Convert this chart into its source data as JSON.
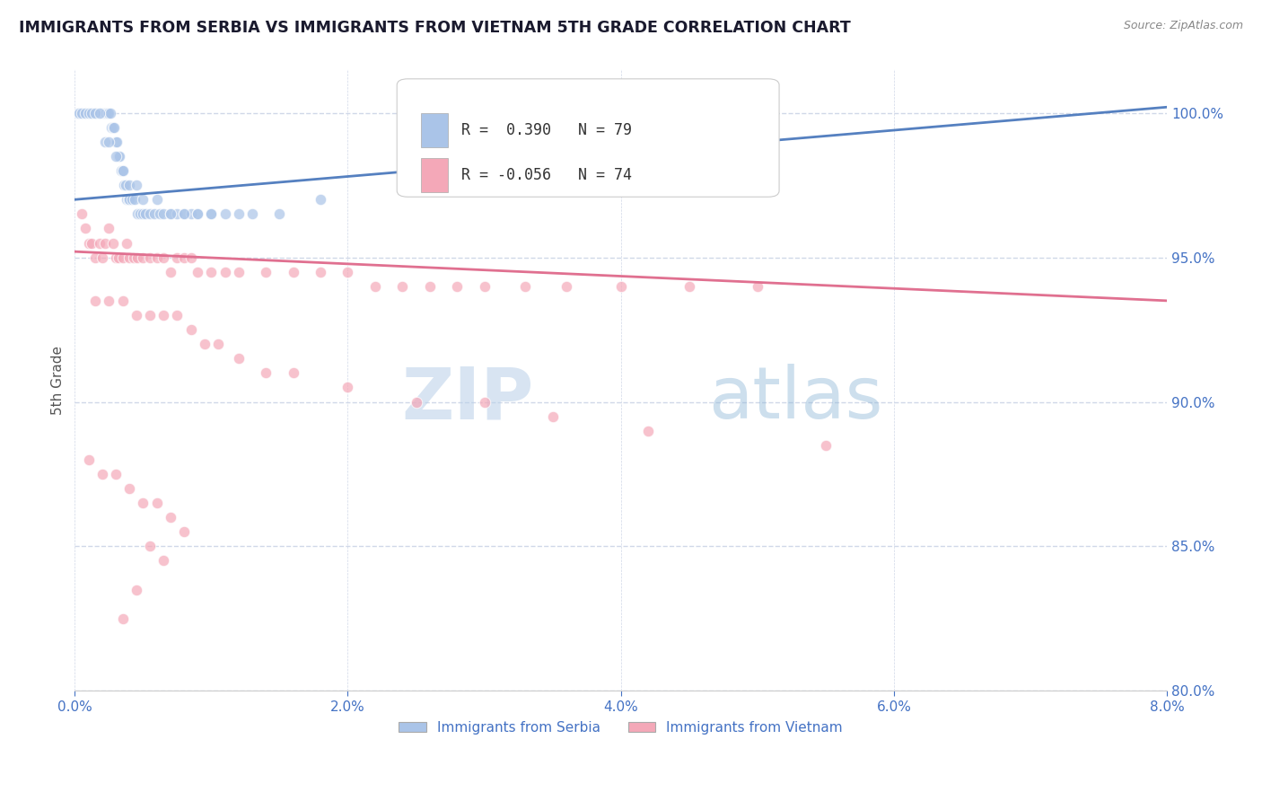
{
  "title": "IMMIGRANTS FROM SERBIA VS IMMIGRANTS FROM VIETNAM 5TH GRADE CORRELATION CHART",
  "source": "Source: ZipAtlas.com",
  "ylabel": "5th Grade",
  "xlim": [
    0.0,
    8.0
  ],
  "ylim": [
    80.0,
    101.5
  ],
  "serbia_R": 0.39,
  "serbia_N": 79,
  "vietnam_R": -0.056,
  "vietnam_N": 74,
  "serbia_color": "#aac4e8",
  "vietnam_color": "#f4a8b8",
  "serbia_line_color": "#5580c0",
  "vietnam_line_color": "#e07090",
  "legend_label_serbia": "Immigrants from Serbia",
  "legend_label_vietnam": "Immigrants from Vietnam",
  "watermark_zip": "ZIP",
  "watermark_atlas": "atlas",
  "watermark_color": "#ccdff0",
  "background_color": "#ffffff",
  "grid_color": "#d0d8e8",
  "title_color": "#1a1a2e",
  "axis_label_color": "#4472c4",
  "serbia_x": [
    0.02,
    0.03,
    0.04,
    0.05,
    0.06,
    0.07,
    0.08,
    0.09,
    0.1,
    0.11,
    0.12,
    0.13,
    0.14,
    0.15,
    0.16,
    0.17,
    0.18,
    0.19,
    0.2,
    0.21,
    0.22,
    0.23,
    0.24,
    0.25,
    0.26,
    0.27,
    0.28,
    0.29,
    0.3,
    0.31,
    0.32,
    0.33,
    0.34,
    0.35,
    0.36,
    0.37,
    0.38,
    0.39,
    0.4,
    0.42,
    0.44,
    0.46,
    0.48,
    0.5,
    0.52,
    0.55,
    0.58,
    0.62,
    0.65,
    0.7,
    0.75,
    0.8,
    0.85,
    0.9,
    1.0,
    1.1,
    1.2,
    1.3,
    1.5,
    0.03,
    0.05,
    0.08,
    0.1,
    0.12,
    0.15,
    0.18,
    0.22,
    0.25,
    0.3,
    0.35,
    0.4,
    0.45,
    0.5,
    0.6,
    0.7,
    0.8,
    0.9,
    1.0,
    1.8
  ],
  "serbia_y": [
    100.0,
    100.0,
    100.0,
    100.0,
    100.0,
    100.0,
    100.0,
    100.0,
    100.0,
    100.0,
    100.0,
    100.0,
    100.0,
    100.0,
    100.0,
    100.0,
    100.0,
    100.0,
    100.0,
    100.0,
    100.0,
    100.0,
    100.0,
    100.0,
    100.0,
    99.5,
    99.5,
    99.5,
    99.0,
    99.0,
    98.5,
    98.5,
    98.0,
    98.0,
    97.5,
    97.5,
    97.0,
    97.0,
    97.0,
    97.0,
    97.0,
    96.5,
    96.5,
    96.5,
    96.5,
    96.5,
    96.5,
    96.5,
    96.5,
    96.5,
    96.5,
    96.5,
    96.5,
    96.5,
    96.5,
    96.5,
    96.5,
    96.5,
    96.5,
    100.0,
    100.0,
    100.0,
    100.0,
    100.0,
    100.0,
    100.0,
    99.0,
    99.0,
    98.5,
    98.0,
    97.5,
    97.5,
    97.0,
    97.0,
    96.5,
    96.5,
    96.5,
    96.5,
    97.0
  ],
  "vietnam_x": [
    0.05,
    0.08,
    0.1,
    0.12,
    0.15,
    0.18,
    0.2,
    0.22,
    0.25,
    0.28,
    0.3,
    0.32,
    0.35,
    0.38,
    0.4,
    0.43,
    0.46,
    0.5,
    0.55,
    0.6,
    0.65,
    0.7,
    0.75,
    0.8,
    0.85,
    0.9,
    1.0,
    1.1,
    1.2,
    1.4,
    1.6,
    1.8,
    2.0,
    2.2,
    2.4,
    2.6,
    2.8,
    3.0,
    3.3,
    3.6,
    4.0,
    4.5,
    5.0,
    0.15,
    0.25,
    0.35,
    0.45,
    0.55,
    0.65,
    0.75,
    0.85,
    0.95,
    1.05,
    1.2,
    1.4,
    1.6,
    2.0,
    2.5,
    3.0,
    3.5,
    4.2,
    5.5,
    0.1,
    0.2,
    0.3,
    0.4,
    0.5,
    0.6,
    0.7,
    0.8,
    0.55,
    0.65,
    0.45,
    0.35
  ],
  "vietnam_y": [
    96.5,
    96.0,
    95.5,
    95.5,
    95.0,
    95.5,
    95.0,
    95.5,
    96.0,
    95.5,
    95.0,
    95.0,
    95.0,
    95.5,
    95.0,
    95.0,
    95.0,
    95.0,
    95.0,
    95.0,
    95.0,
    94.5,
    95.0,
    95.0,
    95.0,
    94.5,
    94.5,
    94.5,
    94.5,
    94.5,
    94.5,
    94.5,
    94.5,
    94.0,
    94.0,
    94.0,
    94.0,
    94.0,
    94.0,
    94.0,
    94.0,
    94.0,
    94.0,
    93.5,
    93.5,
    93.5,
    93.0,
    93.0,
    93.0,
    93.0,
    92.5,
    92.0,
    92.0,
    91.5,
    91.0,
    91.0,
    90.5,
    90.0,
    90.0,
    89.5,
    89.0,
    88.5,
    88.0,
    87.5,
    87.5,
    87.0,
    86.5,
    86.5,
    86.0,
    85.5,
    85.0,
    84.5,
    83.5,
    82.5
  ],
  "serbia_trendline_x": [
    0.0,
    8.0
  ],
  "serbia_trendline_y": [
    97.0,
    100.2
  ],
  "vietnam_trendline_y": [
    95.2,
    93.5
  ]
}
